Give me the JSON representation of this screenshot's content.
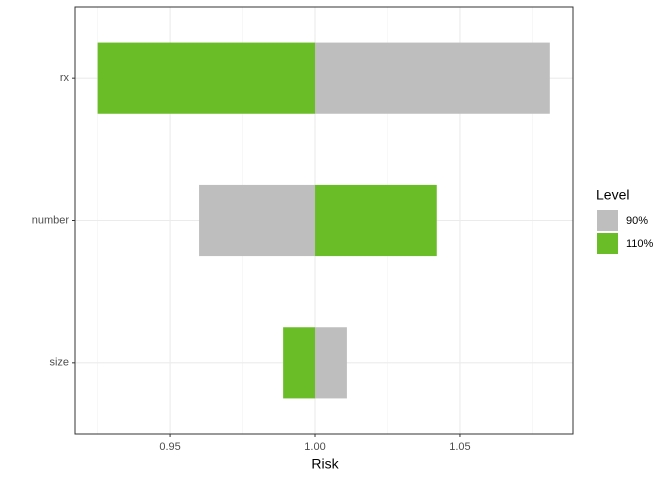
{
  "chart_data": {
    "type": "bar",
    "orientation": "horizontal",
    "stacked": false,
    "x_label": "Risk",
    "legend_title": "Level",
    "categories": [
      "rx",
      "number",
      "size"
    ],
    "baseline": 1,
    "series": [
      {
        "name": "90%",
        "color": "#bebebe",
        "values": [
          1.081,
          0.96,
          1.011
        ]
      },
      {
        "name": "110%",
        "color": "#6abd27",
        "values": [
          0.925,
          1.042,
          0.989
        ]
      }
    ],
    "xlim": [
      0.9172,
      1.089
    ],
    "xticks": [
      {
        "value": 0.95,
        "label": "0.95"
      },
      {
        "value": 1,
        "label": "1.00"
      },
      {
        "value": 1.05,
        "label": "1.05"
      }
    ],
    "grid": true,
    "legend": "right"
  }
}
